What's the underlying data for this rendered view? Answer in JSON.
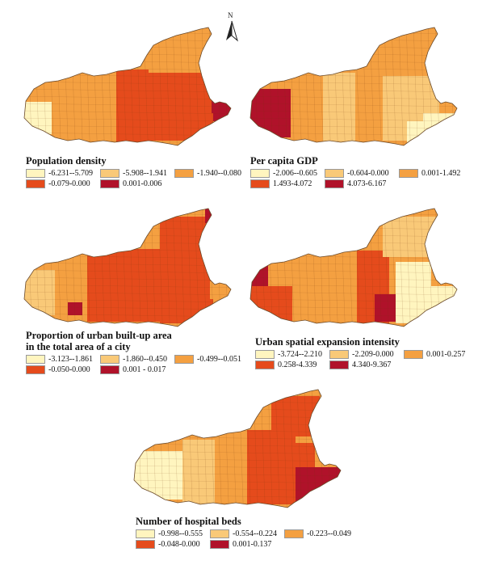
{
  "north_label": "N",
  "panels": [
    {
      "id": "population-density",
      "title_lines": [
        "Population density"
      ],
      "legend": [
        {
          "label": "-6.231--5.709",
          "color": "#fff5bf"
        },
        {
          "label": "-5.908--1.941",
          "color": "#f9c978"
        },
        {
          "label": "-1.940--0.080",
          "color": "#f4a041"
        },
        {
          "label": "-0.079-0.000",
          "color": "#e54b1c"
        },
        {
          "label": "0.001-0.006",
          "color": "#b0122a"
        }
      ]
    },
    {
      "id": "per-capita-gdp",
      "title_lines": [
        "Per capita GDP"
      ],
      "legend": [
        {
          "label": "-2.006--0.605",
          "color": "#fff5bf"
        },
        {
          "label": "-0.604-0.000",
          "color": "#f9c978"
        },
        {
          "label": "0.001-1.492",
          "color": "#f4a041"
        },
        {
          "label": "1.493-4.072",
          "color": "#e54b1c"
        },
        {
          "label": "4.073-6.167",
          "color": "#b0122a"
        }
      ]
    },
    {
      "id": "urban-builtup-proportion",
      "title_lines": [
        "Proportion of urban built-up area",
        "in the total area of a city"
      ],
      "legend": [
        {
          "label": "-3.123--1.861",
          "color": "#fff5bf"
        },
        {
          "label": "-1.860--0.450",
          "color": "#f9c978"
        },
        {
          "label": "-0.499--0.051",
          "color": "#f4a041"
        },
        {
          "label": "-0.050-0.000",
          "color": "#e54b1c"
        },
        {
          "label": "0.001 - 0.017",
          "color": "#b0122a"
        }
      ]
    },
    {
      "id": "urban-expansion-intensity",
      "title_lines": [
        "Urban spatial expansion intensity"
      ],
      "legend": [
        {
          "label": "-3.724--2.210",
          "color": "#fff5bf"
        },
        {
          "label": "-2.209-0.000",
          "color": "#f9c978"
        },
        {
          "label": "0.001-0.257",
          "color": "#f4a041"
        },
        {
          "label": "0.258-4.339",
          "color": "#e54b1c"
        },
        {
          "label": "4.340-9.367",
          "color": "#b0122a"
        }
      ]
    },
    {
      "id": "hospital-beds",
      "title_lines": [
        "Number of hospital beds"
      ],
      "legend": [
        {
          "label": "-0.998--0.555",
          "color": "#fff5bf"
        },
        {
          "label": "-0.554--0.224",
          "color": "#f9c978"
        },
        {
          "label": "-0.223--0.049",
          "color": "#f4a041"
        },
        {
          "label": "-0.048-0.000",
          "color": "#e54b1c"
        },
        {
          "label": "0.001-0.137",
          "color": "#b0122a"
        }
      ]
    }
  ]
}
